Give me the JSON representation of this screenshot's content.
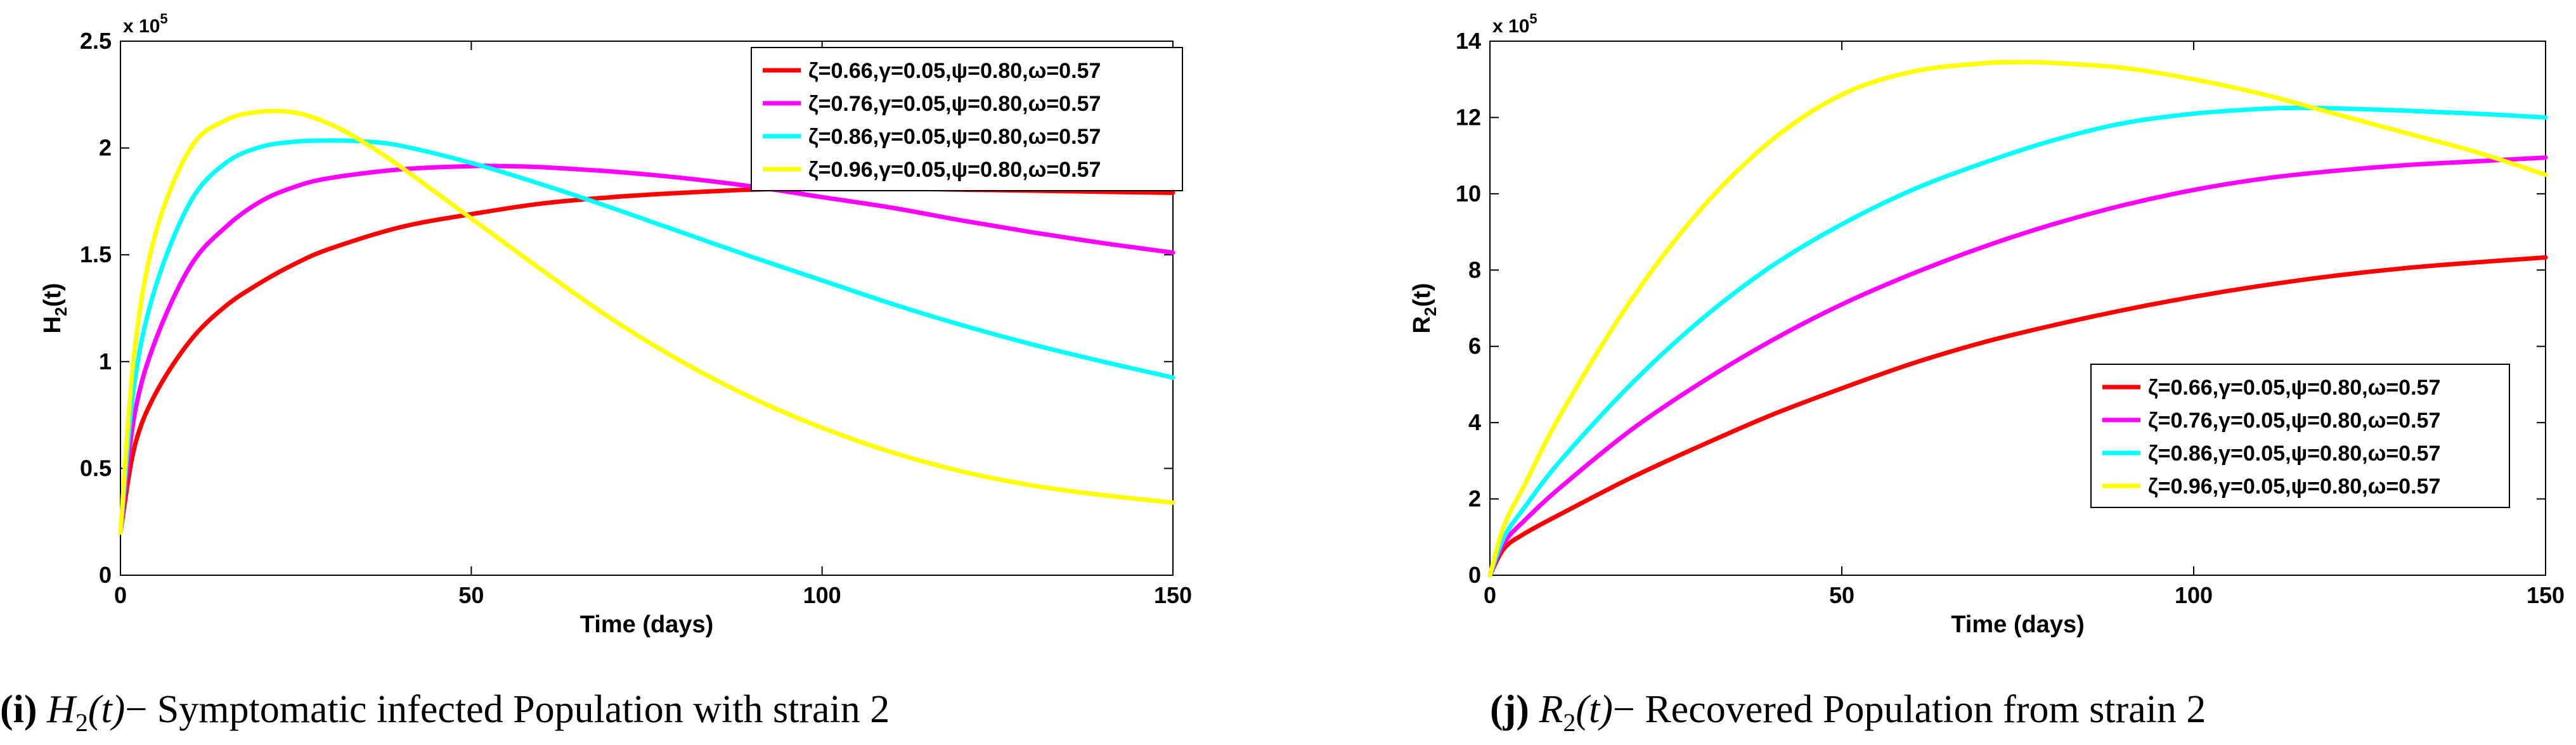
{
  "colors": {
    "red": "#ff0000",
    "magenta": "#ff00ff",
    "cyan": "#00ffff",
    "yellow": "#ffff00",
    "axis": "#000000",
    "legend_border": "#000000"
  },
  "chart_data": [
    {
      "type": "line",
      "title": "",
      "xlabel": "Time (days)",
      "ylabel_main": "H",
      "ylabel_sub": "2",
      "ylabel_tail": "(t)",
      "exponent_base": "x 10",
      "exponent_power": "5",
      "xlim": [
        0,
        150
      ],
      "ylim": [
        0,
        250000
      ],
      "xticks": [
        0,
        50,
        100,
        150
      ],
      "xtick_labels": [
        "0",
        "50",
        "100",
        "150"
      ],
      "yticks": [
        0,
        50000,
        100000,
        150000,
        200000,
        250000
      ],
      "ytick_labels": [
        "0",
        "0.5",
        "1",
        "1.5",
        "2",
        "2.5"
      ],
      "legend_position": "top-right",
      "caption_tag": "(i)",
      "caption_math": "H",
      "caption_math_sub": "2",
      "caption_math_tail": "(t)",
      "caption_text": "− Symptomatic infected Population with strain 2",
      "series": [
        {
          "name": "ζ=0.66,γ=0.05,ψ=0.80,ω=0.57",
          "color": "#ff0000",
          "x": [
            0,
            2,
            5,
            10,
            15,
            20,
            25,
            30,
            40,
            50,
            60,
            70,
            80,
            90,
            100,
            110,
            120,
            130,
            140,
            150
          ],
          "y": [
            20000,
            60000,
            85000,
            110000,
            126000,
            137000,
            146000,
            153000,
            163000,
            169000,
            174000,
            177000,
            179000,
            180500,
            181000,
            181000,
            180500,
            180000,
            179500,
            179000
          ]
        },
        {
          "name": "ζ=0.76,γ=0.05,ψ=0.80,ω=0.57",
          "color": "#ff00ff",
          "x": [
            0,
            2,
            5,
            10,
            15,
            20,
            25,
            30,
            40,
            50,
            55,
            60,
            70,
            80,
            90,
            100,
            110,
            120,
            130,
            140,
            150
          ],
          "y": [
            20000,
            75000,
            110000,
            145000,
            163000,
            175000,
            182000,
            186000,
            190000,
            191500,
            191500,
            191000,
            189000,
            186000,
            182000,
            177000,
            172000,
            166000,
            160500,
            155500,
            151000
          ]
        },
        {
          "name": "ζ=0.86,γ=0.05,ψ=0.80,ω=0.57",
          "color": "#00ffff",
          "x": [
            0,
            2,
            5,
            10,
            15,
            20,
            25,
            30,
            35,
            40,
            50,
            60,
            70,
            80,
            90,
            100,
            110,
            120,
            130,
            140,
            150
          ],
          "y": [
            20000,
            90000,
            135000,
            175000,
            193000,
            200500,
            203000,
            203500,
            203000,
            201000,
            193000,
            183000,
            172000,
            160500,
            149000,
            138000,
            127000,
            117000,
            108000,
            100000,
            92500
          ]
        },
        {
          "name": "ζ=0.96,γ=0.05,ψ=0.80,ω=0.57",
          "color": "#ffff00",
          "x": [
            0,
            2,
            5,
            10,
            15,
            20,
            25,
            30,
            35,
            40,
            50,
            60,
            70,
            80,
            90,
            100,
            110,
            120,
            130,
            140,
            150
          ],
          "y": [
            20000,
            105000,
            160000,
            200000,
            213000,
            217000,
            216500,
            211000,
            202000,
            191000,
            167000,
            143000,
            120000,
            100000,
            83000,
            69000,
            57500,
            48500,
            42000,
            37500,
            34000
          ]
        }
      ]
    },
    {
      "type": "line",
      "title": "",
      "xlabel": "Time (days)",
      "ylabel_main": "R",
      "ylabel_sub": "2",
      "ylabel_tail": "(t)",
      "exponent_base": "x 10",
      "exponent_power": "5",
      "xlim": [
        0,
        150
      ],
      "ylim": [
        0,
        1400000
      ],
      "xticks": [
        0,
        50,
        100,
        150
      ],
      "xtick_labels": [
        "0",
        "50",
        "100",
        "150"
      ],
      "yticks": [
        0,
        200000,
        400000,
        600000,
        800000,
        1000000,
        1200000,
        1400000
      ],
      "ytick_labels": [
        "0",
        "2",
        "4",
        "6",
        "8",
        "10",
        "12",
        "14"
      ],
      "legend_position": "bottom-right",
      "caption_tag": "(j)",
      "caption_math": "R",
      "caption_math_sub": "2",
      "caption_math_tail": "(t)",
      "caption_text": "− Recovered Population from strain 2",
      "series": [
        {
          "name": "ζ=0.66,γ=0.05,ψ=0.80,ω=0.57",
          "color": "#ff0000",
          "x": [
            0,
            2,
            5,
            10,
            20,
            30,
            40,
            50,
            60,
            70,
            80,
            90,
            100,
            110,
            120,
            130,
            140,
            150
          ],
          "y": [
            0,
            70000,
            110000,
            160000,
            255000,
            340000,
            420000,
            490000,
            555000,
            610000,
            655000,
            695000,
            730000,
            760000,
            785000,
            805000,
            820000,
            833000
          ]
        },
        {
          "name": "ζ=0.76,γ=0.05,ψ=0.80,ω=0.57",
          "color": "#ff00ff",
          "x": [
            0,
            2,
            5,
            10,
            20,
            30,
            40,
            50,
            60,
            70,
            80,
            90,
            100,
            110,
            120,
            130,
            140,
            150
          ],
          "y": [
            0,
            85000,
            145000,
            230000,
            380000,
            505000,
            615000,
            710000,
            790000,
            860000,
            920000,
            970000,
            1010000,
            1040000,
            1060000,
            1075000,
            1085000,
            1095000
          ]
        },
        {
          "name": "ζ=0.86,γ=0.05,ψ=0.80,ω=0.57",
          "color": "#00ffff",
          "x": [
            0,
            2,
            5,
            10,
            20,
            30,
            40,
            50,
            60,
            70,
            80,
            90,
            100,
            110,
            115,
            120,
            130,
            140,
            150
          ],
          "y": [
            0,
            100000,
            180000,
            300000,
            500000,
            670000,
            810000,
            920000,
            1010000,
            1080000,
            1140000,
            1185000,
            1210000,
            1223000,
            1225000,
            1224000,
            1218000,
            1210000,
            1200000
          ]
        },
        {
          "name": "ζ=0.96,γ=0.05,ψ=0.80,ω=0.57",
          "color": "#ffff00",
          "x": [
            0,
            2,
            5,
            10,
            20,
            30,
            40,
            50,
            60,
            70,
            75,
            80,
            90,
            100,
            110,
            120,
            130,
            140,
            150
          ],
          "y": [
            0,
            130000,
            240000,
            420000,
            720000,
            960000,
            1140000,
            1260000,
            1320000,
            1342000,
            1345000,
            1343000,
            1330000,
            1300000,
            1260000,
            1210000,
            1160000,
            1110000,
            1050000
          ]
        }
      ]
    }
  ]
}
